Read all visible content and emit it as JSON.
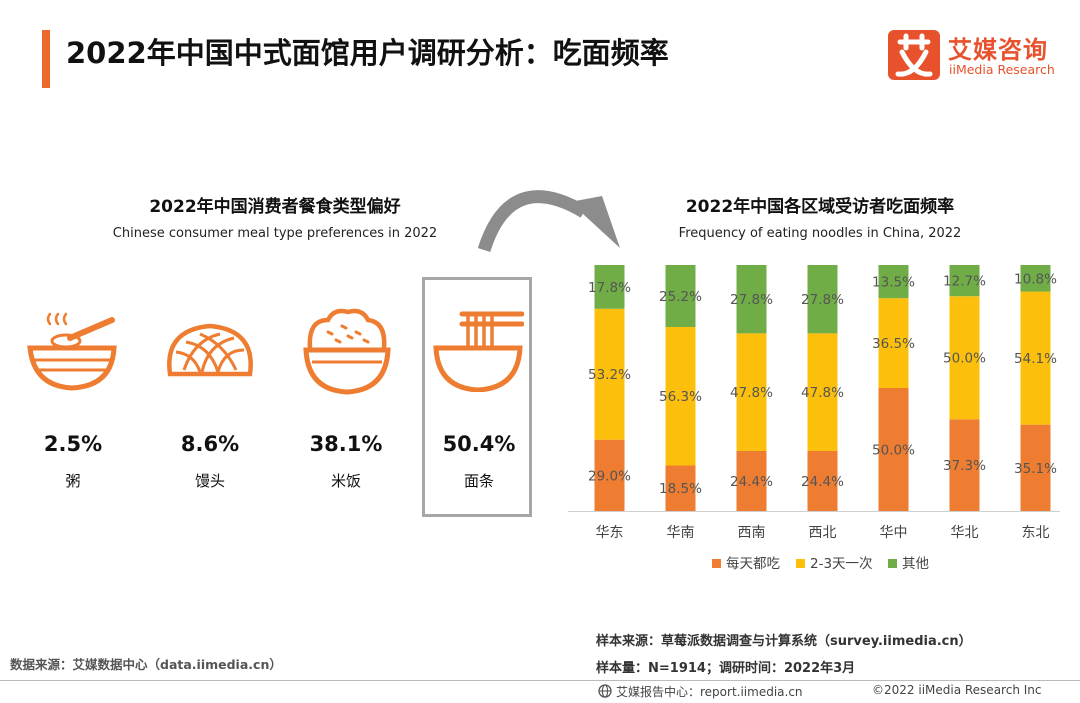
{
  "header": {
    "title": "2022年中国中式面馆用户调研分析：吃面频率",
    "logo_cn": "艾媒咨询",
    "logo_en": "iiMedia Research",
    "accent": "#ee6a2c"
  },
  "left": {
    "title": "2022年中国消费者餐食类型偏好",
    "subtitle": "Chinese consumer meal type preferences in 2022",
    "meals": [
      {
        "pct": "2.5%",
        "name": "粥",
        "icon": "porridge-bowl-icon"
      },
      {
        "pct": "8.6%",
        "name": "馒头",
        "icon": "steamed-bun-icon"
      },
      {
        "pct": "38.1%",
        "name": "米饭",
        "icon": "rice-bowl-icon"
      },
      {
        "pct": "50.4%",
        "name": "面条",
        "icon": "noodle-bowl-icon"
      }
    ]
  },
  "right": {
    "title": "2022年中国各区域受访者吃面频率",
    "subtitle": "Frequency of eating noodles in China, 2022"
  },
  "chart_data": {
    "type": "bar",
    "stacked": true,
    "title": "2022年中国各区域受访者吃面频率",
    "subtitle": "Frequency of eating noodles in China, 2022",
    "categories": [
      "华东",
      "华南",
      "西南",
      "西北",
      "华中",
      "华北",
      "东北"
    ],
    "series": [
      {
        "name": "每天都吃",
        "color": "#ee7d31",
        "values": [
          29.0,
          18.5,
          24.4,
          24.4,
          50.0,
          37.3,
          35.1
        ]
      },
      {
        "name": "2-3天一次",
        "color": "#fcc00c",
        "values": [
          53.2,
          56.3,
          47.8,
          47.8,
          36.5,
          50.0,
          54.1
        ]
      },
      {
        "name": "其他",
        "color": "#70ad47",
        "values": [
          17.8,
          25.2,
          27.8,
          27.8,
          13.5,
          12.7,
          10.8
        ]
      }
    ],
    "ylim": [
      0,
      100
    ],
    "legend_position": "bottom"
  },
  "footer": {
    "source_left": "数据来源：艾媒数据中心（data.iimedia.cn）",
    "sample_source": "样本来源：草莓派数据调查与计算系统（survey.iimedia.cn）",
    "sample_size": "样本量：N=1914；调研时间：2022年3月",
    "report": "艾媒报告中心：report.iimedia.cn",
    "copyright": "©2022 iiMedia Research Inc"
  }
}
